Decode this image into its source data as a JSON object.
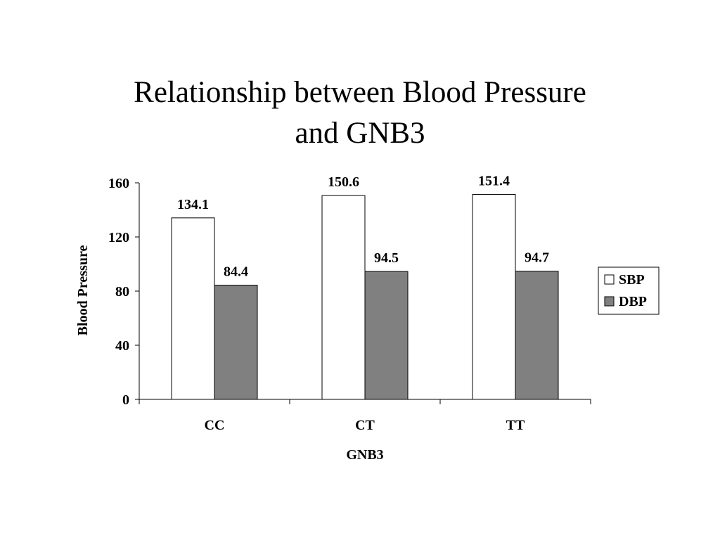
{
  "title_lines": [
    "Relationship between Blood Pressure",
    "and GNB3"
  ],
  "chart_data": {
    "type": "bar",
    "title": "Relationship between Blood Pressure and GNB3",
    "xlabel": "GNB3",
    "ylabel": "Blood Pressure",
    "categories": [
      "CC",
      "CT",
      "TT"
    ],
    "series": [
      {
        "name": "SBP",
        "values": [
          134.1,
          150.6,
          151.4
        ],
        "color": "#ffffff"
      },
      {
        "name": "DBP",
        "values": [
          84.4,
          94.5,
          94.7
        ],
        "color": "#808080"
      }
    ],
    "ylim": [
      0,
      160
    ],
    "yticks": [
      0,
      40,
      80,
      120,
      160
    ],
    "data_labels": true,
    "grid": false,
    "legend_position": "right"
  }
}
